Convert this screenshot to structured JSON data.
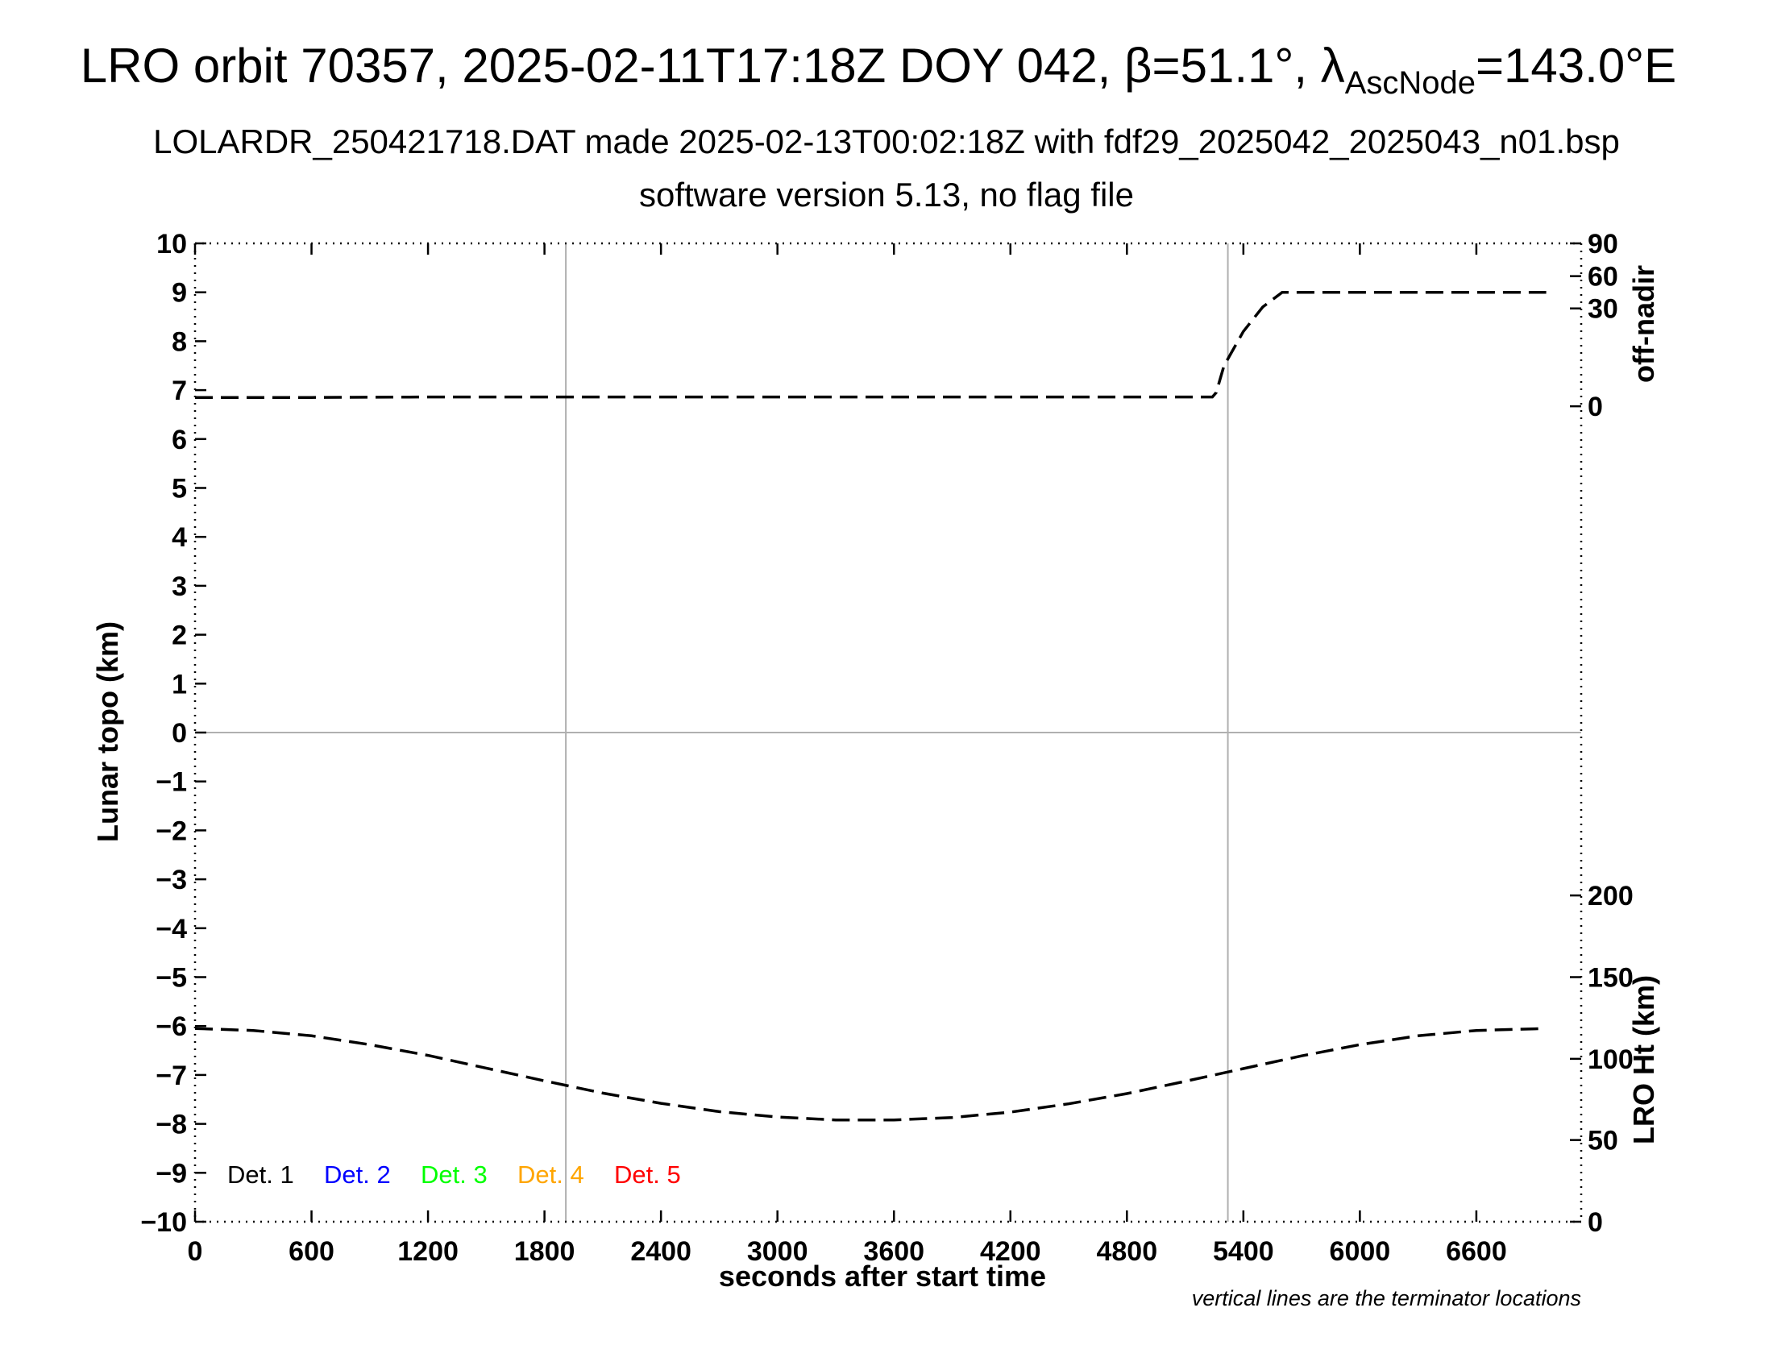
{
  "title": {
    "main": "LRO orbit 70357, 2025-02-11T17:18Z DOY 042, β=51.1°, λ",
    "main_sub": "AscNode",
    "main_tail": "=143.0°E",
    "line2": "LOLARDR_250421718.DAT made 2025-02-13T00:02:18Z with fdf29_2025042_2025043_n01.bsp",
    "line3": "software version 5.13, no flag file"
  },
  "footnote": "vertical lines are the terminator locations",
  "chart_data": {
    "type": "line",
    "xlabel": "seconds after start time",
    "ylabel": "Lunar topo (km)",
    "y2label_top": "off-nadir",
    "y2label_bottom": "LRO Ht (km)",
    "xlim": [
      0,
      7140
    ],
    "ylim": [
      -10,
      10
    ],
    "x_ticks": [
      0,
      600,
      1200,
      1800,
      2400,
      3000,
      3600,
      4200,
      4800,
      5400,
      6000,
      6600
    ],
    "y_ticks": [
      10,
      9,
      8,
      7,
      6,
      5,
      4,
      3,
      2,
      1,
      0,
      -1,
      -2,
      -3,
      -4,
      -5,
      -6,
      -7,
      -8,
      -9,
      -10
    ],
    "y_tick_labels": [
      "10",
      "9",
      "8",
      "7",
      "6",
      "5",
      "4",
      "3",
      "2",
      "1",
      "0",
      "−1",
      "−2",
      "−3",
      "−4",
      "−5",
      "−6",
      "−7",
      "−8",
      "−9",
      "−10"
    ],
    "off_nadir_axis": {
      "ticks": [
        {
          "value": 90,
          "topo": 10.0
        },
        {
          "value": 60,
          "topo": 9.33
        },
        {
          "value": 30,
          "topo": 8.67
        },
        {
          "value": 0,
          "topo": 6.67
        }
      ]
    },
    "lro_ht_axis": {
      "ticks": [
        {
          "value": 200,
          "topo": -3.33
        },
        {
          "value": 150,
          "topo": -5.0
        },
        {
          "value": 100,
          "topo": -6.67
        },
        {
          "value": 50,
          "topo": -8.33
        },
        {
          "value": 0,
          "topo": -10.0
        }
      ]
    },
    "terminators": [
      1910,
      5320
    ],
    "zero_line": 0,
    "grid": false,
    "series": [
      {
        "line_style": "dashed",
        "color": "#000000",
        "x": [
          0,
          600,
          1200,
          1800,
          2400,
          3000,
          3600,
          4200,
          4800,
          5240,
          5260,
          5300,
          5400,
          5500,
          5600,
          6000,
          6600,
          6960
        ],
        "y": [
          6.85,
          6.85,
          6.86,
          6.86,
          6.86,
          6.86,
          6.86,
          6.86,
          6.86,
          6.86,
          6.95,
          7.5,
          8.2,
          8.7,
          9.0,
          9.0,
          9.0,
          9.0
        ]
      },
      {
        "line_style": "dashed",
        "color": "#000000",
        "x": [
          0,
          300,
          600,
          900,
          1200,
          1500,
          1800,
          2100,
          2400,
          2700,
          3000,
          3300,
          3600,
          3900,
          4200,
          4500,
          4800,
          5100,
          5400,
          5700,
          6000,
          6300,
          6600,
          6960
        ],
        "y": [
          -6.05,
          -6.09,
          -6.2,
          -6.38,
          -6.6,
          -6.86,
          -7.12,
          -7.37,
          -7.58,
          -7.75,
          -7.86,
          -7.92,
          -7.92,
          -7.87,
          -7.76,
          -7.59,
          -7.38,
          -7.13,
          -6.87,
          -6.61,
          -6.38,
          -6.2,
          -6.09,
          -6.05
        ]
      }
    ],
    "legend": [
      {
        "label": "Det. 1",
        "color": "#000000"
      },
      {
        "label": "Det. 2",
        "color": "#0000ff"
      },
      {
        "label": "Det. 3",
        "color": "#00ff00"
      },
      {
        "label": "Det. 4",
        "color": "#ffa500"
      },
      {
        "label": "Det. 5",
        "color": "#ff0000"
      }
    ],
    "legend_position": "bottom-left"
  }
}
